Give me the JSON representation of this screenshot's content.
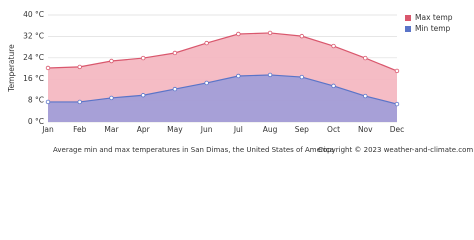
{
  "chart_data": {
    "type": "area",
    "y_label": "Temperature",
    "categories": [
      "Jan",
      "Feb",
      "Mar",
      "Apr",
      "May",
      "Jun",
      "Jul",
      "Aug",
      "Sep",
      "Oct",
      "Nov",
      "Dec"
    ],
    "series": [
      {
        "name": "Max temp",
        "color": "#d9576d",
        "fill": "#f4b5bf",
        "values": [
          20.2,
          20.6,
          22.8,
          23.9,
          25.8,
          29.5,
          32.9,
          33.3,
          32.1,
          28.4,
          23.9,
          19.1
        ]
      },
      {
        "name": "Min temp",
        "color": "#5a74c8",
        "fill": "#9f9cd8",
        "values": [
          7.5,
          7.5,
          9.0,
          10.0,
          12.3,
          14.6,
          17.2,
          17.6,
          16.8,
          13.5,
          9.7,
          6.7
        ]
      }
    ],
    "ylim": [
      0,
      40
    ],
    "yticks": [
      {
        "value": 0,
        "label": "0 °C"
      },
      {
        "value": 8,
        "label": "8 °C"
      },
      {
        "value": 16,
        "label": "16 °C"
      },
      {
        "value": 24,
        "label": "24 °C"
      },
      {
        "value": 32,
        "label": "32 °C"
      },
      {
        "value": 40,
        "label": "40 °C"
      }
    ],
    "grid": true,
    "legend": "right",
    "caption": "Average min and max temperatures in San Dimas, the United States of America",
    "copyright": "Copyright © 2023  weather-and-climate.com"
  }
}
